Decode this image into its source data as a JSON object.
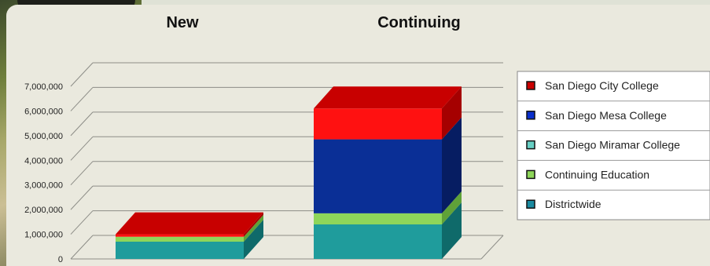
{
  "chart_data": {
    "type": "bar",
    "stacked": true,
    "three_d": true,
    "categories": [
      "New",
      "Continuing"
    ],
    "series": [
      {
        "name": "Districtwide",
        "color": "#1f9c9c",
        "side": "#0f6a6a",
        "top": "#2bb7b5",
        "values": [
          700000,
          1400000
        ]
      },
      {
        "name": "Continuing Education",
        "color": "#8ed65a",
        "side": "#5fa238",
        "top": "#a6e274",
        "values": [
          200000,
          450000
        ]
      },
      {
        "name": "San Diego Miramar College",
        "color": "#1f9c9c",
        "side": "#0f6a6a",
        "top": "#2bb7b5",
        "values": [
          0,
          0
        ]
      },
      {
        "name": "San Diego Mesa College",
        "color": "#0a2f96",
        "side": "#061d62",
        "top": "#163fb0",
        "values": [
          0,
          3000000
        ]
      },
      {
        "name": "San Diego City College",
        "color": "#ff1111",
        "side": "#a50000",
        "top": "#c80000",
        "values": [
          100000,
          1250000
        ]
      }
    ],
    "y_ticks": [
      "7,000,000",
      "6,000,000",
      "5,000,000",
      "4,000,000",
      "3,000,000",
      "2,000,000",
      "1,000,000",
      "0"
    ],
    "ylim": [
      0,
      7000000
    ],
    "grid": true,
    "legend_position": "right",
    "legend_order": [
      "San Diego City College",
      "San Diego Mesa College",
      "San Diego Miramar College",
      "Continuing Education",
      "Districtwide"
    ],
    "legend_marker_colors": [
      "#c80000",
      "#0a2fcc",
      "#67cfc4",
      "#8ed65a",
      "#1a8aa0"
    ]
  }
}
